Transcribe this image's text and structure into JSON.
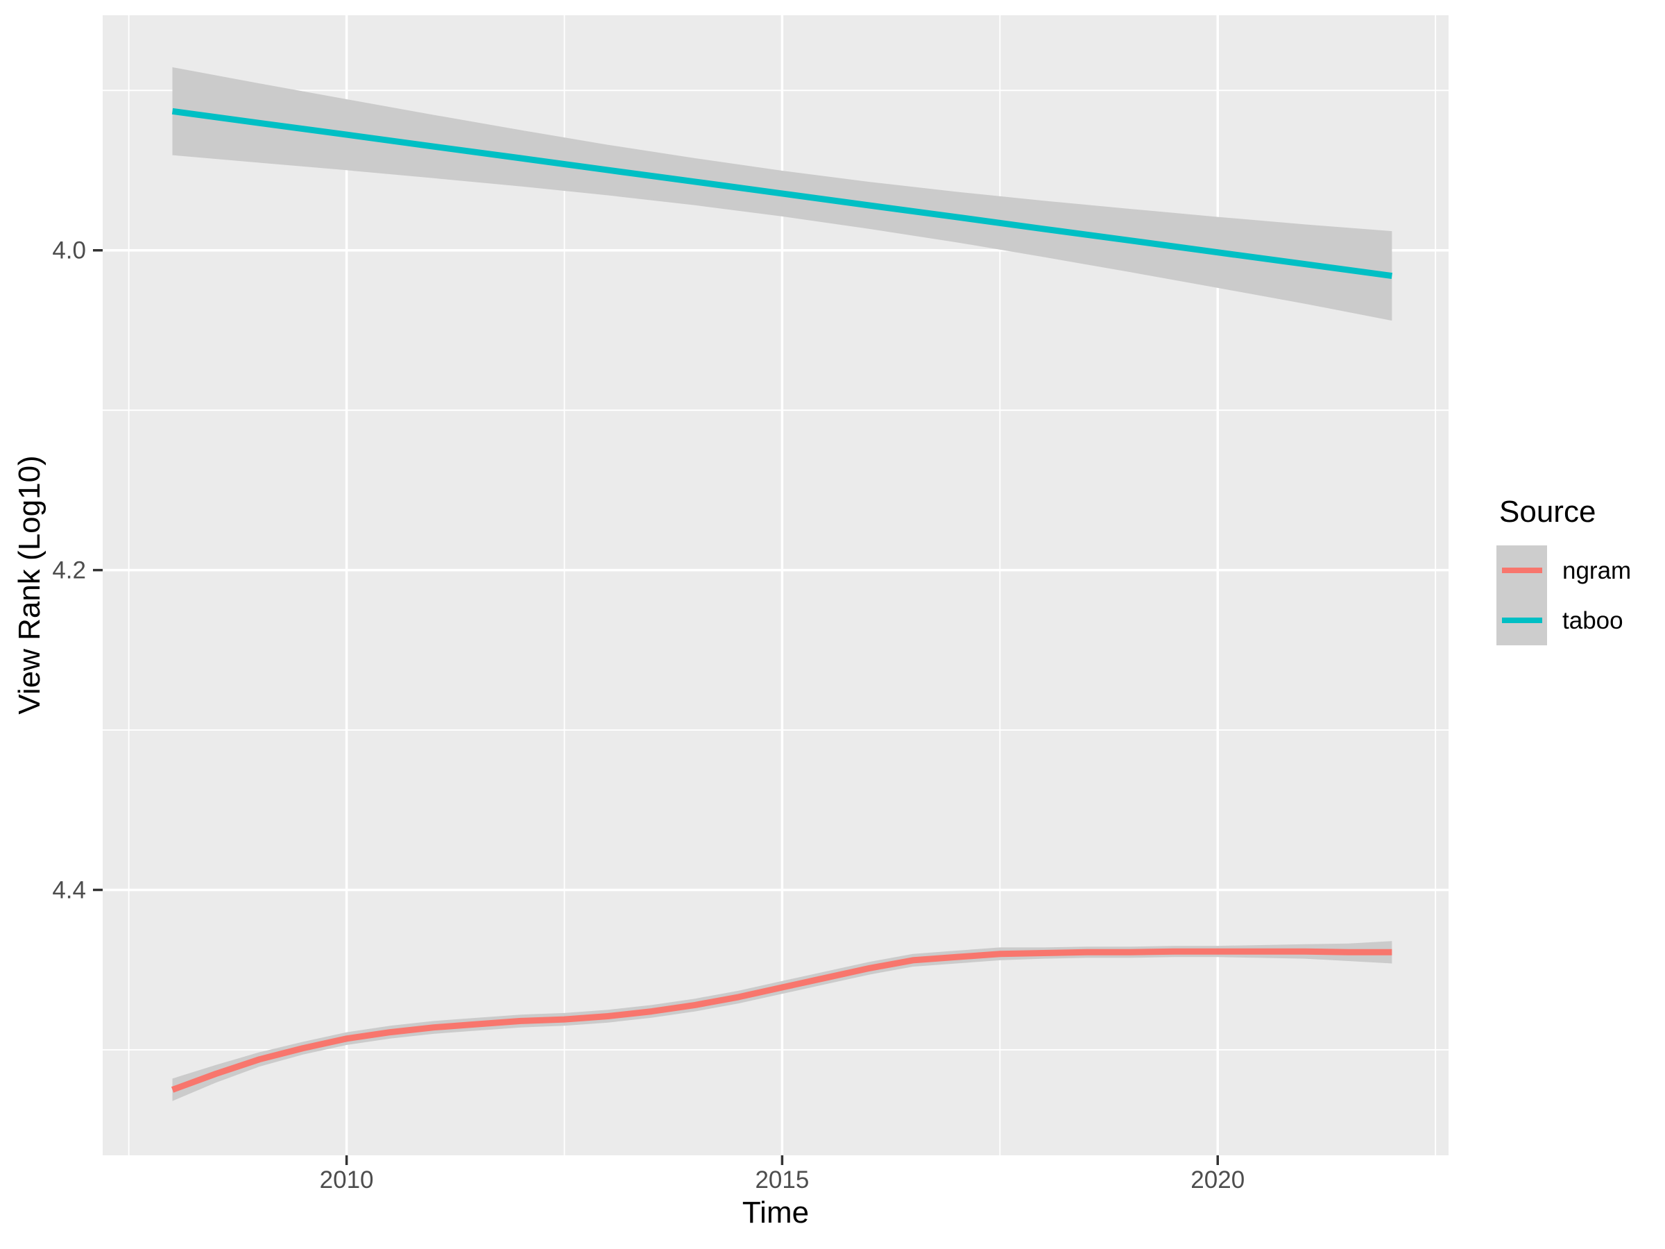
{
  "chart_data": {
    "type": "line",
    "title": "",
    "xlabel": "Time",
    "ylabel": "View Rank (Log10)",
    "x_axis": {
      "ticks": [
        {
          "value": 2010,
          "label": "2010"
        },
        {
          "value": 2015,
          "label": "2015"
        },
        {
          "value": 2020,
          "label": "2020"
        }
      ],
      "minor_ticks": [
        2007.5,
        2012.5,
        2017.5,
        2022.5
      ],
      "range": [
        2007.2,
        2022.65
      ]
    },
    "y_axis": {
      "reversed": true,
      "ticks": [
        {
          "value": 4.0,
          "label": "4.0"
        },
        {
          "value": 4.2,
          "label": "4.2"
        },
        {
          "value": 4.4,
          "label": "4.4"
        }
      ],
      "minor_ticks": [
        3.9,
        4.1,
        4.3,
        4.5
      ],
      "range_top_to_bottom": [
        3.853,
        4.566
      ]
    },
    "legend": {
      "title": "Source",
      "position": "right",
      "entries": [
        {
          "label": "ngram",
          "color": "#F8766D"
        },
        {
          "label": "taboo",
          "color": "#00BFC4"
        }
      ]
    },
    "colors": {
      "panel_bg": "#EBEBEB",
      "gridline": "#FFFFFF",
      "ci_band": "#CBCBCB",
      "tick_text": "#4D4D4D",
      "tick_mark": "#333333"
    },
    "series": [
      {
        "name": "ngram",
        "color": "#F8766D",
        "smooth": "loess",
        "x": [
          2008,
          2008.5,
          2009,
          2009.5,
          2010,
          2010.5,
          2011,
          2011.5,
          2012,
          2012.5,
          2013,
          2013.5,
          2014,
          2014.5,
          2015,
          2015.5,
          2016,
          2016.5,
          2017,
          2017.5,
          2018,
          2018.5,
          2019,
          2019.5,
          2020,
          2020.5,
          2021,
          2021.5,
          2022
        ],
        "y": [
          4.525,
          4.515,
          4.506,
          4.499,
          4.493,
          4.489,
          4.486,
          4.484,
          4.482,
          4.481,
          4.479,
          4.476,
          4.472,
          4.467,
          4.461,
          4.455,
          4.449,
          4.444,
          4.442,
          4.44,
          4.4395,
          4.439,
          4.439,
          4.4385,
          4.4385,
          4.4385,
          4.4385,
          4.439,
          4.439
        ],
        "ci_halfwidth": [
          0.007,
          0.0055,
          0.0045,
          0.004,
          0.004,
          0.004,
          0.004,
          0.004,
          0.004,
          0.004,
          0.004,
          0.004,
          0.004,
          0.004,
          0.004,
          0.004,
          0.004,
          0.004,
          0.004,
          0.004,
          0.0035,
          0.0035,
          0.0035,
          0.0035,
          0.0035,
          0.004,
          0.0045,
          0.0055,
          0.007
        ]
      },
      {
        "name": "taboo",
        "color": "#00BFC4",
        "smooth": "lm",
        "x": [
          2008,
          2009,
          2010,
          2011,
          2012,
          2013,
          2014,
          2015,
          2016,
          2017,
          2018,
          2019,
          2020,
          2021,
          2022
        ],
        "y": [
          3.913,
          3.9204,
          3.9277,
          3.9351,
          3.9424,
          3.9498,
          3.9571,
          3.9645,
          3.9719,
          3.9792,
          3.9866,
          3.9939,
          4.0013,
          4.0086,
          4.016
        ],
        "ci_halfwidth": [
          0.0275,
          0.0248,
          0.0222,
          0.0198,
          0.0176,
          0.0158,
          0.0147,
          0.0143,
          0.0147,
          0.0158,
          0.0176,
          0.0198,
          0.0222,
          0.0248,
          0.028
        ]
      }
    ]
  }
}
